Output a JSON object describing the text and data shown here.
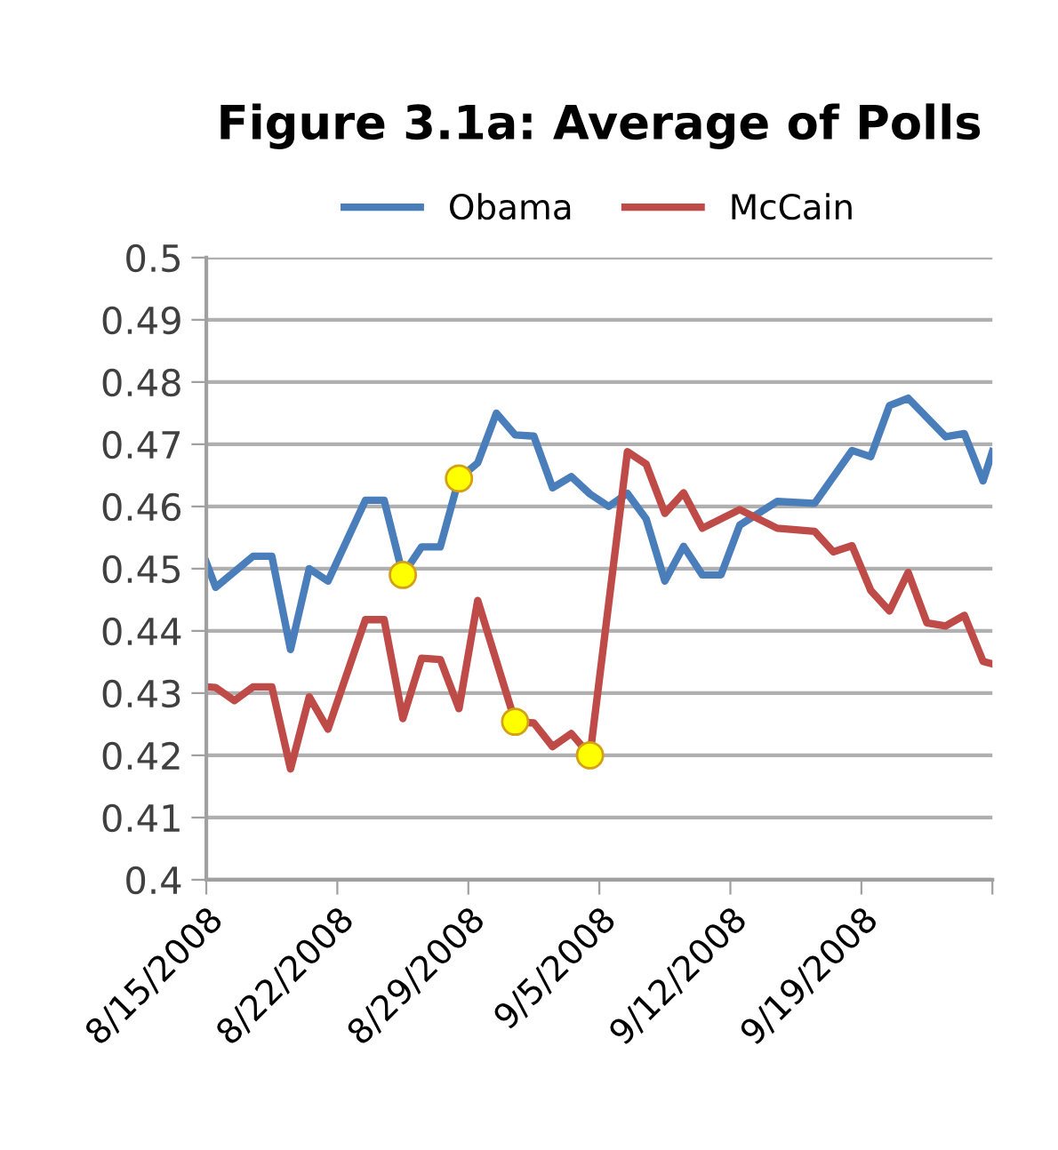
{
  "chart_data": {
    "type": "line",
    "title": "Figure 3.1a: Average of Polls",
    "legend": "top",
    "grid": "y",
    "marker": "none",
    "line_style": "solid",
    "ylim": [
      0.4,
      0.5
    ],
    "yticks": [
      0.4,
      0.41,
      0.42,
      0.43,
      0.44,
      0.45,
      0.46,
      0.47,
      0.48,
      0.49,
      0.5
    ],
    "xlim": [
      "2008-08-15",
      "2008-09-26"
    ],
    "xticks": [
      {
        "value": "2008-08-15",
        "label": "8/15/2008"
      },
      {
        "value": "2008-08-22",
        "label": "8/22/2008"
      },
      {
        "value": "2008-08-29",
        "label": "8/29/2008"
      },
      {
        "value": "2008-09-05",
        "label": "9/5/2008"
      },
      {
        "value": "2008-09-12",
        "label": "9/12/2008"
      },
      {
        "value": "2008-09-19",
        "label": "9/19/2008"
      },
      {
        "value": "2008-09-26",
        "label": null
      }
    ],
    "series": [
      {
        "name": "Obama",
        "color": "#4a7ebb",
        "x": [
          "2008-08-15T00:00",
          "2008-08-15T12:00",
          "2008-08-17T12:00",
          "2008-08-18T12:00",
          "2008-08-19T12:00",
          "2008-08-20T12:00",
          "2008-08-21T12:00",
          "2008-08-23T12:00",
          "2008-08-24T12:00",
          "2008-08-25T12:00",
          "2008-08-26T12:00",
          "2008-08-27T12:00",
          "2008-08-28T12:00",
          "2008-08-29T12:00",
          "2008-08-30T12:00",
          "2008-08-31T12:00",
          "2008-09-01T12:00",
          "2008-09-02T12:00",
          "2008-09-03T12:00",
          "2008-09-04T12:00",
          "2008-09-05T12:00",
          "2008-09-06T12:00",
          "2008-09-07T12:00",
          "2008-09-08T12:00",
          "2008-09-09T12:00",
          "2008-09-10T12:00",
          "2008-09-11T12:00",
          "2008-09-12T12:00",
          "2008-09-14T12:00",
          "2008-09-16T12:00",
          "2008-09-18T12:00",
          "2008-09-19T12:00",
          "2008-09-20T12:00",
          "2008-09-21T12:00",
          "2008-09-23T12:00",
          "2008-09-24T12:00",
          "2008-09-25T12:00",
          "2008-09-26T00:00"
        ],
        "values": [
          0.451,
          0.447,
          0.452,
          0.452,
          0.437,
          0.45,
          0.448,
          0.461,
          0.461,
          0.449,
          0.4535,
          0.4535,
          0.4645,
          0.467,
          0.475,
          0.4715,
          0.4713,
          0.463,
          0.4648,
          0.462,
          0.46,
          0.4621,
          0.458,
          0.448,
          0.4536,
          0.449,
          0.449,
          0.457,
          0.4608,
          0.4605,
          0.469,
          0.468,
          0.4762,
          0.4774,
          0.4712,
          0.4717,
          0.4641,
          0.4688
        ]
      },
      {
        "name": "McCain",
        "color": "#be4b48",
        "x": [
          "2008-08-15T00:00",
          "2008-08-15T12:00",
          "2008-08-16T12:00",
          "2008-08-17T12:00",
          "2008-08-18T12:00",
          "2008-08-19T12:00",
          "2008-08-20T12:00",
          "2008-08-21T12:00",
          "2008-08-23T12:00",
          "2008-08-24T12:00",
          "2008-08-25T12:00",
          "2008-08-26T12:00",
          "2008-08-27T12:00",
          "2008-08-28T12:00",
          "2008-08-29T12:00",
          "2008-08-31T12:00",
          "2008-09-01T12:00",
          "2008-09-02T12:00",
          "2008-09-03T12:00",
          "2008-09-04T12:00",
          "2008-09-06T12:00",
          "2008-09-07T12:00",
          "2008-09-08T12:00",
          "2008-09-09T12:00",
          "2008-09-10T12:00",
          "2008-09-12T12:00",
          "2008-09-14T12:00",
          "2008-09-16T12:00",
          "2008-09-17T12:00",
          "2008-09-18T12:00",
          "2008-09-19T12:00",
          "2008-09-20T12:00",
          "2008-09-21T12:00",
          "2008-09-22T12:00",
          "2008-09-23T12:00",
          "2008-09-24T12:00",
          "2008-09-25T12:00",
          "2008-09-26T00:00"
        ],
        "values": [
          0.431,
          0.4309,
          0.4288,
          0.431,
          0.431,
          0.4178,
          0.4294,
          0.4242,
          0.4418,
          0.4418,
          0.4259,
          0.4356,
          0.4354,
          0.4275,
          0.4449,
          0.4254,
          0.4252,
          0.4214,
          0.4235,
          0.42,
          0.4688,
          0.4668,
          0.4589,
          0.4622,
          0.4565,
          0.4595,
          0.4565,
          0.456,
          0.4527,
          0.4537,
          0.4465,
          0.4432,
          0.4494,
          0.4413,
          0.4408,
          0.4425,
          0.4351,
          0.4347
        ]
      },
      {
        "type": "scatter",
        "marker": "circle",
        "color": "#ffff00",
        "x": [
          "2008-08-25T12:00",
          "2008-08-28T12:00",
          "2008-08-31T12:00",
          "2008-09-04T12:00"
        ],
        "values": [
          0.449,
          0.4645,
          0.4254,
          0.42
        ]
      }
    ]
  }
}
